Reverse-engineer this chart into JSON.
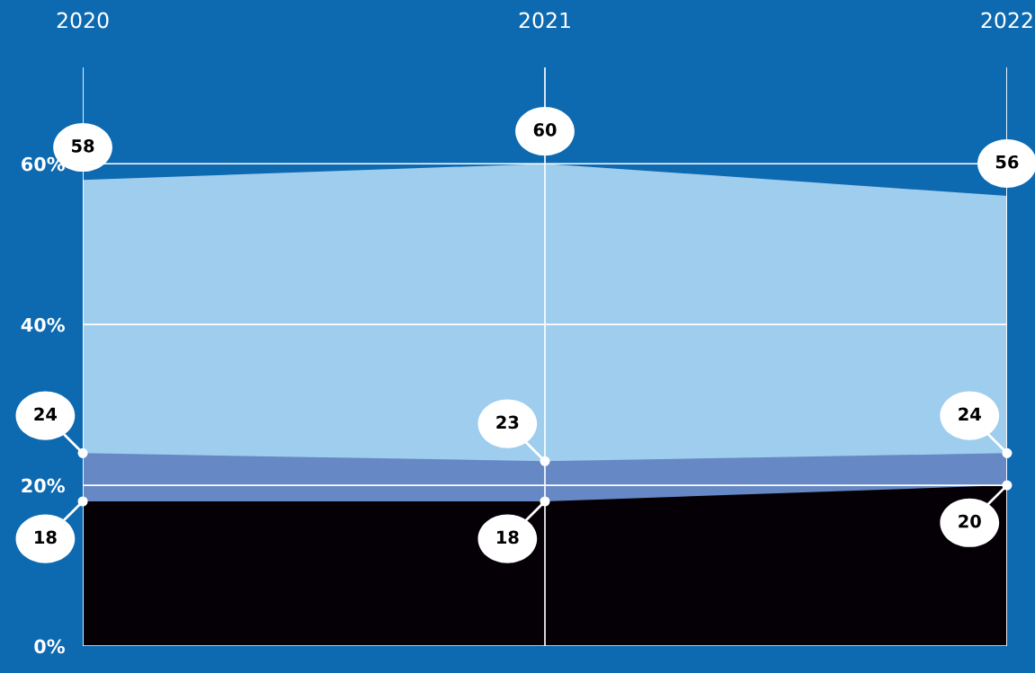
{
  "chart_data": {
    "type": "area",
    "stacked": false,
    "data_labels": true,
    "categories": [
      "2020",
      "2021",
      "2022"
    ],
    "series": [
      {
        "color": "#9ecdee",
        "values": [
          58,
          60,
          56
        ]
      },
      {
        "color": "#6688c4",
        "values": [
          24,
          23,
          24
        ]
      },
      {
        "color": "#050005",
        "values": [
          18,
          18,
          20
        ]
      }
    ],
    "ylim": [
      0,
      72
    ],
    "yticks": [
      {
        "value": 0,
        "label": "0%"
      },
      {
        "value": 20,
        "label": "20%"
      },
      {
        "value": 40,
        "label": "40%"
      },
      {
        "value": 60,
        "label": "60%"
      }
    ],
    "grid": true
  }
}
